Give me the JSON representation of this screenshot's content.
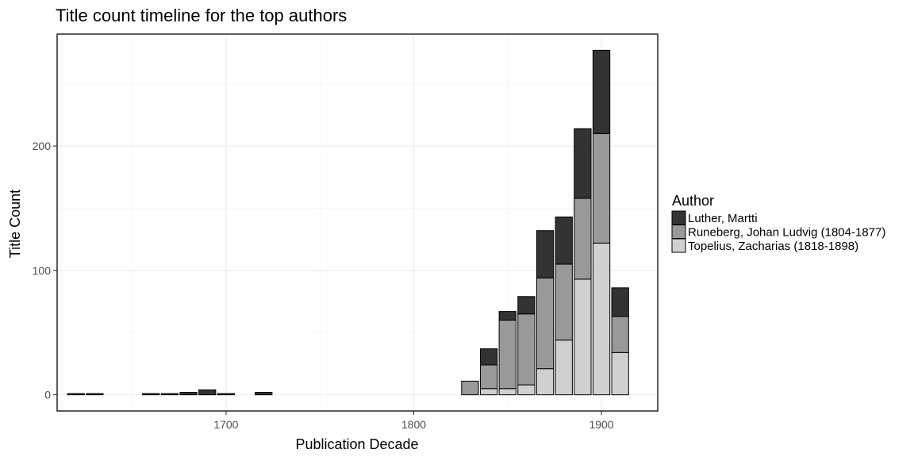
{
  "chart_data": {
    "type": "bar",
    "stacked": true,
    "title": "Title count timeline for the top authors",
    "xlabel": "Publication Decade",
    "ylabel": "Title Count",
    "xlim": [
      1610,
      1930
    ],
    "ylim": [
      -13,
      290
    ],
    "x_ticks": [
      1700,
      1800,
      1900
    ],
    "y_ticks": [
      0,
      100,
      200
    ],
    "grid": true,
    "legend": {
      "title": "Author",
      "placement": "right"
    },
    "series": [
      {
        "name": "Topelius, Zacharias (1818-1898)",
        "color": "#d0d0d0",
        "x": [
          1840,
          1850,
          1860,
          1870,
          1880,
          1890,
          1900,
          1910
        ],
        "values": [
          5,
          5,
          8,
          21,
          44,
          93,
          122,
          34
        ]
      },
      {
        "name": "Runeberg, Johan Ludvig (1804-1877)",
        "color": "#999999",
        "x": [
          1830,
          1840,
          1850,
          1860,
          1870,
          1880,
          1890,
          1900,
          1910
        ],
        "values": [
          11,
          19,
          55,
          57,
          73,
          61,
          65,
          88,
          29
        ]
      },
      {
        "name": "Luther, Martti",
        "color": "#333333",
        "x": [
          1620,
          1630,
          1660,
          1670,
          1680,
          1690,
          1700,
          1720,
          1840,
          1850,
          1860,
          1870,
          1880,
          1890,
          1900,
          1910
        ],
        "values": [
          1,
          1,
          1,
          1,
          2,
          4,
          1,
          2,
          13,
          7,
          14,
          38,
          38,
          56,
          67,
          23
        ]
      }
    ],
    "legend_order": [
      "Luther, Martti",
      "Runeberg, Johan Ludvig (1804-1877)",
      "Topelius, Zacharias (1818-1898)"
    ]
  }
}
